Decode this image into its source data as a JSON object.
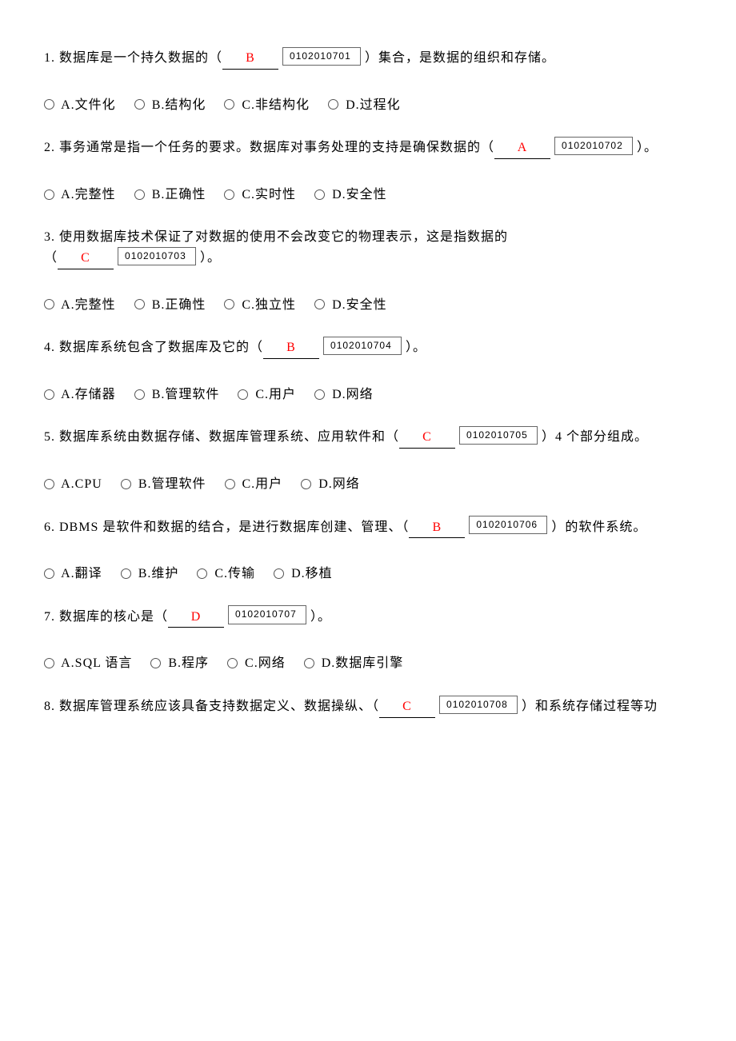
{
  "answer_color": "#ff0000",
  "text_color": "#000000",
  "background_color": "#ffffff",
  "questions": [
    {
      "num": "1.",
      "text_before": "数据库是一个持久数据的（",
      "answer": "B",
      "id": "0102010701",
      "text_after": "）集合，是数据的组织和存储。",
      "options": [
        "A.文件化",
        "B.结构化",
        "C.非结构化",
        "D.过程化"
      ]
    },
    {
      "num": "2.",
      "text_before": "事务通常是指一个任务的要求。数据库对事务处理的支持是确保数据的（",
      "answer": "A",
      "id": "0102010702",
      "text_after": "）。",
      "options": [
        "A.完整性",
        "B.正确性",
        "C.实时性",
        "D.安全性"
      ]
    },
    {
      "num": "3.",
      "text_before_line1": "使用数据库技术保证了对数据的使用不会改变它的物理表示，这是指数据的",
      "text_before_line2": "（",
      "answer": "C",
      "id": "0102010703",
      "text_after": "）。",
      "options": [
        "A.完整性",
        "B.正确性",
        "C.独立性",
        "D.安全性"
      ]
    },
    {
      "num": "4.",
      "text_before": "数据库系统包含了数据库及它的（",
      "answer": "B",
      "id": "0102010704",
      "text_after": "）。",
      "options": [
        "A.存储器",
        "B.管理软件",
        "C.用户",
        "D.网络"
      ]
    },
    {
      "num": "5.",
      "text_before": "数据库系统由数据存储、数据库管理系统、应用软件和（",
      "answer": "C",
      "id": "0102010705",
      "text_after": "）4 个部分组成。",
      "options": [
        "A.CPU",
        "B.管理软件",
        "C.用户",
        "D.网络"
      ]
    },
    {
      "num": "6.",
      "text_before": "DBMS 是软件和数据的结合，是进行数据库创建、管理、（",
      "answer": "B",
      "id": "0102010706",
      "text_after": "）的软件系统。",
      "options": [
        "A.翻译",
        "B.维护",
        "C.传输",
        "D.移植"
      ]
    },
    {
      "num": "7.",
      "text_before": "数据库的核心是（",
      "answer": "D",
      "id": "0102010707",
      "text_after": "）。",
      "options": [
        "A.SQL 语言",
        "B.程序",
        "C.网络",
        "D.数据库引擎"
      ]
    },
    {
      "num": "8.",
      "text_before": "数据库管理系统应该具备支持数据定义、数据操纵、（",
      "answer": "C",
      "id": "0102010708",
      "text_after": "）和系统存储过程等功",
      "options": null
    }
  ]
}
